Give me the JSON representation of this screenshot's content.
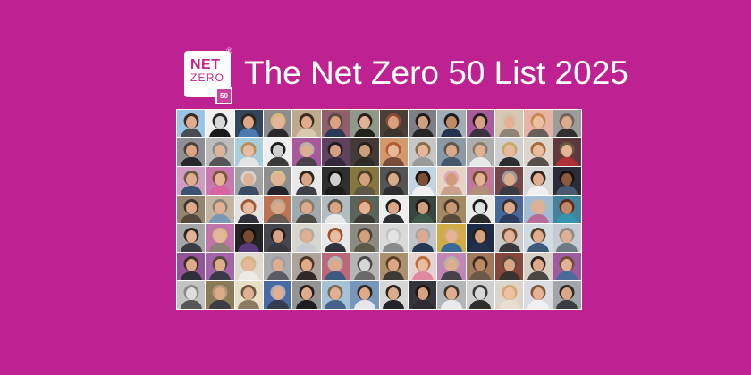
{
  "background_color": "#be2191",
  "header": {
    "logo": {
      "line1": "NET",
      "line2": "ZERO",
      "registered_mark": "®",
      "badge": "50",
      "box_color": "#ffffff",
      "text_color": "#c4268f"
    },
    "title": "The Net Zero 50 List 2025",
    "title_color": "#ffffff"
  },
  "collage": {
    "rows": 7,
    "cols": 14,
    "tile_count": 98,
    "gap_color": "#ffffff",
    "tiles": [
      {
        "b": "#9cc4e4",
        "h": "#3a2a22",
        "k": "#e0ac90",
        "s": "#4a4a52"
      },
      {
        "b": "#f0f0f0",
        "h": "#2a2a2a",
        "k": "#d8d8d8",
        "s": "#1a1a1a"
      },
      {
        "b": "#31465c",
        "h": "#2e2620",
        "k": "#dca888",
        "s": "#4a7ab0"
      },
      {
        "b": "#8c8c8c",
        "h": "#d8b878",
        "k": "#e4b49c",
        "s": "#2a2a2e"
      },
      {
        "b": "#bfa98e",
        "h": "#3c2c20",
        "k": "#dfab8c",
        "s": "#d8c8ac"
      },
      {
        "b": "#8f5f6b",
        "h": "#5a4a3e",
        "k": "#dca183",
        "s": "#2c3a55"
      },
      {
        "b": "#90988c",
        "h": "#2b2118",
        "k": "#e2b295",
        "s": "#23221f"
      },
      {
        "b": "#4a3e38",
        "h": "#8a4f33",
        "k": "#d9a07f",
        "s": "#3a332e"
      },
      {
        "b": "#7e7e86",
        "h": "#1f1a18",
        "k": "#cf9f82",
        "s": "#262626"
      },
      {
        "b": "#a3adb8",
        "h": "#1d1d1f",
        "k": "#c08a64",
        "s": "#243450"
      },
      {
        "b": "#a75a9c",
        "h": "#241d1c",
        "k": "#d7a284",
        "s": "#3a3240"
      },
      {
        "b": "#d7c7b2",
        "h": "#cfc4b0",
        "k": "#e2b193",
        "s": "#8f8577"
      },
      {
        "b": "#e7b3a6",
        "h": "#c98a52",
        "k": "#eebf9f",
        "s": "#69605c"
      },
      {
        "b": "#9c9c9c",
        "h": "#6e625a",
        "k": "#dcab8c",
        "s": "#32302e"
      },
      {
        "b": "#8e8e96",
        "h": "#4e4038",
        "k": "#d9a584",
        "s": "#27272b"
      },
      {
        "b": "#bcbcbc",
        "h": "#8c8c8c",
        "k": "#dfb398",
        "s": "#55565a"
      },
      {
        "b": "#a6cede",
        "h": "#b98d5e",
        "k": "#e7bda0",
        "s": "#e3e3e3"
      },
      {
        "b": "#efefef",
        "h": "#1e1e1e",
        "k": "#cfcfcf",
        "s": "#3a3a3a"
      },
      {
        "b": "#a9589e",
        "h": "#b8b0a8",
        "k": "#dcae92",
        "s": "#4b4148"
      },
      {
        "b": "#5f4260",
        "h": "#241b20",
        "k": "#d3a084",
        "s": "#35283a"
      },
      {
        "b": "#463a38",
        "h": "#2a211c",
        "k": "#caa07c",
        "s": "#2e2a26"
      },
      {
        "b": "#d29a6c",
        "h": "#b05a30",
        "k": "#e7b898",
        "s": "#7a4a3a"
      },
      {
        "b": "#c6c6c6",
        "h": "#8a6a4a",
        "k": "#e3b79b",
        "s": "#9a9a9a"
      },
      {
        "b": "#8b99a6",
        "h": "#5e554c",
        "k": "#d8a988",
        "s": "#46596b"
      },
      {
        "b": "#aeaeae",
        "h": "#8a7a66",
        "k": "#e0b294",
        "s": "#e9e9e9"
      },
      {
        "b": "#cfcfcf",
        "h": "#c9a86a",
        "k": "#e6b89c",
        "s": "#2e2e32"
      },
      {
        "b": "#ded6cc",
        "h": "#a96b3c",
        "k": "#e9bc9e",
        "s": "#57514b"
      },
      {
        "b": "#5e3a3e",
        "h": "#6a5a3e",
        "k": "#e3b496",
        "s": "#b03038"
      },
      {
        "b": "#cf9dc2",
        "h": "#6b5a48",
        "k": "#dcae8e",
        "s": "#3c5270"
      },
      {
        "b": "#c878ae",
        "h": "#7a5638",
        "k": "#e6b495",
        "s": "#d764a0"
      },
      {
        "b": "#a2a2a2",
        "h": "#d2d2d2",
        "k": "#e0b092",
        "s": "#3a4a62"
      },
      {
        "b": "#8e8e8e",
        "h": "#d6c08c",
        "k": "#e4b195",
        "s": "#242428"
      },
      {
        "b": "#e9e9e9",
        "h": "#2e2620",
        "k": "#daa685",
        "s": "#3e3e46"
      },
      {
        "b": "#2f2f2f",
        "h": "#111111",
        "k": "#cfcfcf",
        "s": "#1c1c1c"
      },
      {
        "b": "#86763f",
        "h": "#4e3b28",
        "k": "#d3a37e",
        "s": "#5f5648"
      },
      {
        "b": "#555555",
        "h": "#3a332c",
        "k": "#d9ab8b",
        "s": "#2e2e2e"
      },
      {
        "b": "#c2d4e4",
        "h": "#1c1410",
        "k": "#7a4f35",
        "s": "#f0f0f0"
      },
      {
        "b": "#e7d3c3",
        "h": "#dfa8b8",
        "k": "#cf9a74",
        "s": "#caa08a"
      },
      {
        "b": "#c27898",
        "h": "#6e4e33",
        "k": "#e3b193",
        "s": "#b0907a"
      },
      {
        "b": "#74464a",
        "h": "#9a9a9a",
        "k": "#dcae90",
        "s": "#3a3a42"
      },
      {
        "b": "#d9d9d9",
        "h": "#2c2420",
        "k": "#e0ad8e",
        "s": "#efefef"
      },
      {
        "b": "#2c2c38",
        "h": "#151015",
        "k": "#8a5a3c",
        "s": "#4a5a6e"
      },
      {
        "b": "#97846f",
        "h": "#3c3430",
        "k": "#dcab8c",
        "s": "#55483c"
      },
      {
        "b": "#c3b3a2",
        "h": "#8c8274",
        "k": "#e2b296",
        "s": "#7a98b4"
      },
      {
        "b": "#e2e2e2",
        "h": "#a05a38",
        "k": "#e8bb9e",
        "s": "#30303a"
      },
      {
        "b": "#bd7354",
        "h": "#baa890",
        "k": "#daa888",
        "s": "#6a5a50"
      },
      {
        "b": "#9fa9ae",
        "h": "#8a7a68",
        "k": "#dcab8c",
        "s": "#4e4a46"
      },
      {
        "b": "#b3bcc3",
        "h": "#5e544a",
        "k": "#d9a584",
        "s": "#e8e8ea"
      },
      {
        "b": "#59655a",
        "h": "#7a4f33",
        "k": "#e3b092",
        "s": "#3a3a32"
      },
      {
        "b": "#ededed",
        "h": "#241e1a",
        "k": "#d8a586",
        "s": "#2e2e36"
      },
      {
        "b": "#38453e",
        "h": "#1f1814",
        "k": "#cfa080",
        "s": "#3e5a4a"
      },
      {
        "b": "#a38a64",
        "h": "#4a3a2c",
        "k": "#c89a74",
        "s": "#5a4a3a"
      },
      {
        "b": "#ebebeb",
        "h": "#1a1a1a",
        "k": "#e0e0e0",
        "s": "#2a2a2a"
      },
      {
        "b": "#48689c",
        "h": "#3c2e24",
        "k": "#dcab8b",
        "s": "#2c3e5e"
      },
      {
        "b": "#a3bcd4",
        "h": "#d0b49c",
        "k": "#e0b092",
        "s": "#b86a9a"
      },
      {
        "b": "#43839c",
        "h": "#68251f",
        "k": "#c08a66",
        "s": "#3694b0"
      },
      {
        "b": "#a6a6a6",
        "h": "#2a2624",
        "k": "#e0b195",
        "s": "#3c3c44"
      },
      {
        "b": "#bf74aa",
        "h": "#d6b887",
        "k": "#e6b89a",
        "s": "#8c8278"
      },
      {
        "b": "#232323",
        "h": "#141210",
        "k": "#7a4a30",
        "s": "#5a3a7a"
      },
      {
        "b": "#46464e",
        "h": "#241c1a",
        "k": "#d5a284",
        "s": "#383840"
      },
      {
        "b": "#d6d6cf",
        "h": "#b0aca4",
        "k": "#e0ae90",
        "s": "#c8ccd0"
      },
      {
        "b": "#e8e8e8",
        "h": "#9e4f2e",
        "k": "#e8bca0",
        "s": "#33333b"
      },
      {
        "b": "#8b8b84",
        "h": "#4e443a",
        "k": "#d3a07e",
        "s": "#5d5a4a"
      },
      {
        "b": "#d9d9d9",
        "h": "#c6c6c6",
        "k": "#e3e3e3",
        "s": "#8a8a8a"
      },
      {
        "b": "#c3c3ca",
        "h": "#a8a8ac",
        "k": "#dcaa8c",
        "s": "#283850"
      },
      {
        "b": "#d2ab47",
        "h": "#cfae74",
        "k": "#e4b296",
        "s": "#3a6a9a"
      },
      {
        "b": "#1d2b47",
        "h": "#26201c",
        "k": "#d3a080",
        "s": "#22304a"
      },
      {
        "b": "#c9c9c9",
        "h": "#6e4a30",
        "k": "#e2b195",
        "s": "#3a3a3e"
      },
      {
        "b": "#d3dbe2",
        "h": "#50402f",
        "k": "#dfae8f",
        "s": "#3e5a7c"
      },
      {
        "b": "#c6ccd1",
        "h": "#8c8c8c",
        "k": "#dfb092",
        "s": "#6e7a84"
      },
      {
        "b": "#94549a",
        "h": "#3a2e26",
        "k": "#dcab8a",
        "s": "#2e2e38"
      },
      {
        "b": "#a263aa",
        "h": "#55493c",
        "k": "#dfae8e",
        "s": "#3a3a46"
      },
      {
        "b": "#dedad2",
        "h": "#d2b684",
        "k": "#e6b89b",
        "s": "#eceae4"
      },
      {
        "b": "#ababab",
        "h": "#9e9e9e",
        "k": "#ddad8f",
        "s": "#5a5a64"
      },
      {
        "b": "#ada49b",
        "h": "#4e3526",
        "k": "#e0ac8c",
        "s": "#2f2a28"
      },
      {
        "b": "#bc6878",
        "h": "#b4b4b4",
        "k": "#dcaa8a",
        "s": "#3c5a80"
      },
      {
        "b": "#b5b5b5",
        "h": "#4a4a4a",
        "k": "#d6d6d6",
        "s": "#6a6a6a"
      },
      {
        "b": "#ab9070",
        "h": "#5e4024",
        "k": "#daa887",
        "s": "#3e3a36"
      },
      {
        "b": "#e7d2d2",
        "h": "#c06a3a",
        "k": "#e8bca0",
        "s": "#e088a0"
      },
      {
        "b": "#c286b4",
        "h": "#b8b0a4",
        "k": "#deae90",
        "s": "#46424a"
      },
      {
        "b": "#a1775e",
        "h": "#3c2a1e",
        "k": "#b98a64",
        "s": "#6e5a48"
      },
      {
        "b": "#87463c",
        "h": "#5a4a3c",
        "k": "#d9a787",
        "s": "#3a342e"
      },
      {
        "b": "#d8d0c6",
        "h": "#2e2420",
        "k": "#dcab8c",
        "s": "#4a4642"
      },
      {
        "b": "#9c5c9e",
        "h": "#6e4c33",
        "k": "#e2b295",
        "s": "#4a6a9c"
      },
      {
        "b": "#c3c3c3",
        "h": "#8a8a8a",
        "k": "#dedede",
        "s": "#565656"
      },
      {
        "b": "#8a7a58",
        "h": "#b09a7c",
        "k": "#dca98a",
        "s": "#3c3c44"
      },
      {
        "b": "#e7dfc7",
        "h": "#6b5a44",
        "k": "#e0b092",
        "s": "#8a7a62"
      },
      {
        "b": "#4a6aa4",
        "h": "#b0b0b4",
        "k": "#e0ae90",
        "s": "#343c4e"
      },
      {
        "b": "#949494",
        "h": "#241e1e",
        "k": "#dfab8c",
        "s": "#1e1e22"
      },
      {
        "b": "#a6c2d6",
        "h": "#7a6a58",
        "k": "#e0b092",
        "s": "#46648a"
      },
      {
        "b": "#7796bc",
        "h": "#2e2420",
        "k": "#dcab8c",
        "s": "#e6e6ea"
      },
      {
        "b": "#d6d6d6",
        "h": "#2a2622",
        "k": "#dcab8c",
        "s": "#23232b"
      },
      {
        "b": "#35353d",
        "h": "#1c1614",
        "k": "#d3a080",
        "s": "#2e2a32"
      },
      {
        "b": "#b2b6ba",
        "h": "#3e342a",
        "k": "#dfae8e",
        "s": "#eaeaec"
      },
      {
        "b": "#cfcfcf",
        "h": "#3a3a3a",
        "k": "#d8d8d8",
        "s": "#2e2e2e"
      },
      {
        "b": "#ddd5c9",
        "h": "#d2a976",
        "k": "#eec0a2",
        "s": "#e8ddcf"
      },
      {
        "b": "#d9dde1",
        "h": "#7a5a3c",
        "k": "#e4b296",
        "s": "#f0f0f2"
      },
      {
        "b": "#a2a6aa",
        "h": "#2e2a26",
        "k": "#d9a888",
        "s": "#3a3e42"
      }
    ]
  }
}
